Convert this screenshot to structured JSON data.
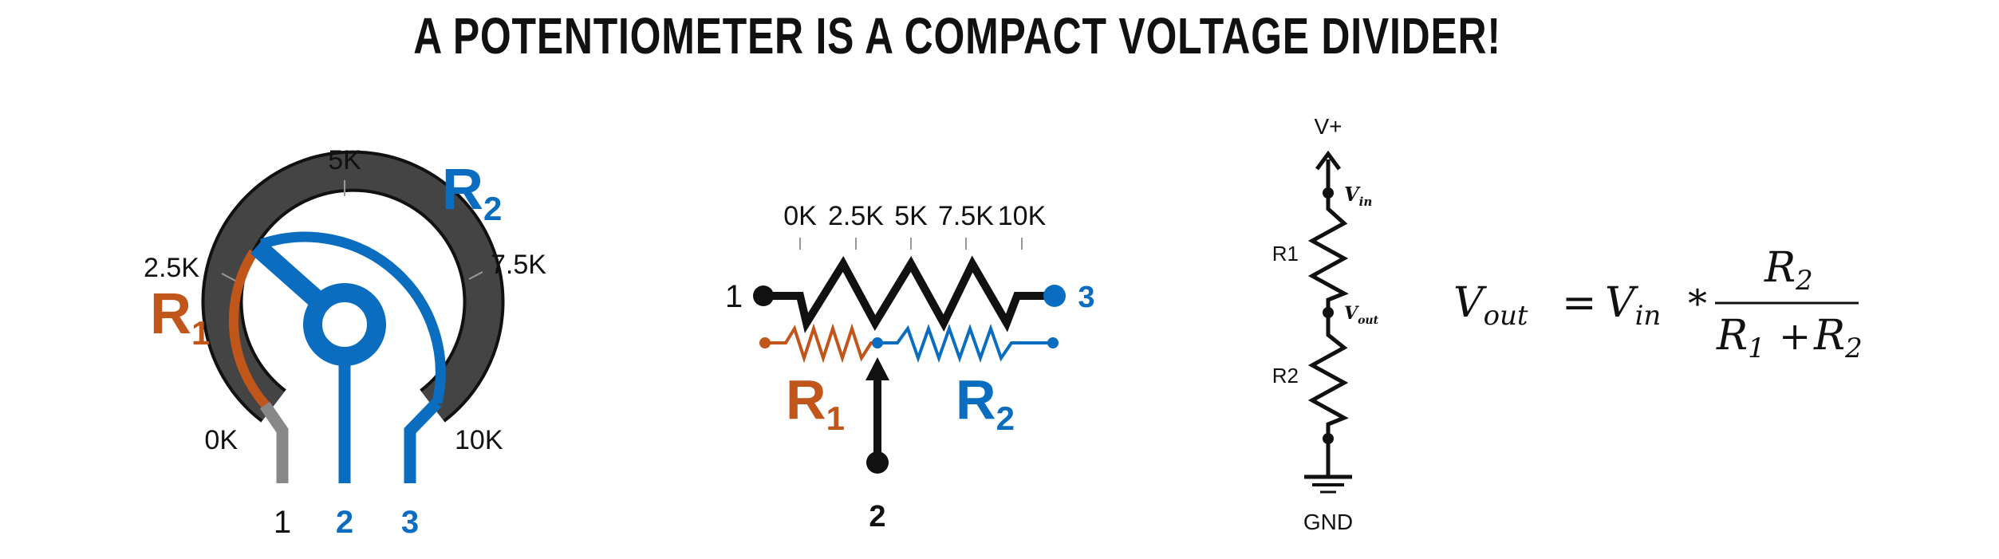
{
  "title": "A POTENTIOMETER IS A COMPACT VOLTAGE DIVIDER!",
  "colors": {
    "orange": "#C0561A",
    "blue": "#0A6DBF",
    "dark": "#444444",
    "grey": "#888888",
    "black": "#111111"
  },
  "knob": {
    "tick_0k": "0K",
    "tick_2_5k": "2.5K",
    "tick_5k": "5K",
    "tick_7_5k": "7.5K",
    "tick_10k": "10K",
    "r1_main": "R",
    "r1_sub": "1",
    "r2_main": "R",
    "r2_sub": "2",
    "pin1": "1",
    "pin2": "2",
    "pin3": "3"
  },
  "schematic": {
    "tick_0k": "0K",
    "tick_2_5k": "2.5K",
    "tick_5k": "5K",
    "tick_7_5k": "7.5K",
    "tick_10k": "10K",
    "pin1": "1",
    "pin2": "2",
    "pin3": "3",
    "r1_main": "R",
    "r1_sub": "1",
    "r2_main": "R",
    "r2_sub": "2"
  },
  "divider": {
    "vplus": "V+",
    "vin_main": "V",
    "vin_sub": "in",
    "vout_main": "V",
    "vout_sub": "out",
    "r1": "R1",
    "r2": "R2",
    "gnd": "GND"
  },
  "formula": {
    "vout_main": "V",
    "vout_sub": "out",
    "equals": "=",
    "vin_main": "V",
    "vin_sub": "in",
    "times": "*",
    "num_main": "R",
    "num_sub": "2",
    "den_r1_main": "R",
    "den_r1_sub": "1",
    "plus": "+",
    "den_r2_main": "R",
    "den_r2_sub": "2"
  }
}
